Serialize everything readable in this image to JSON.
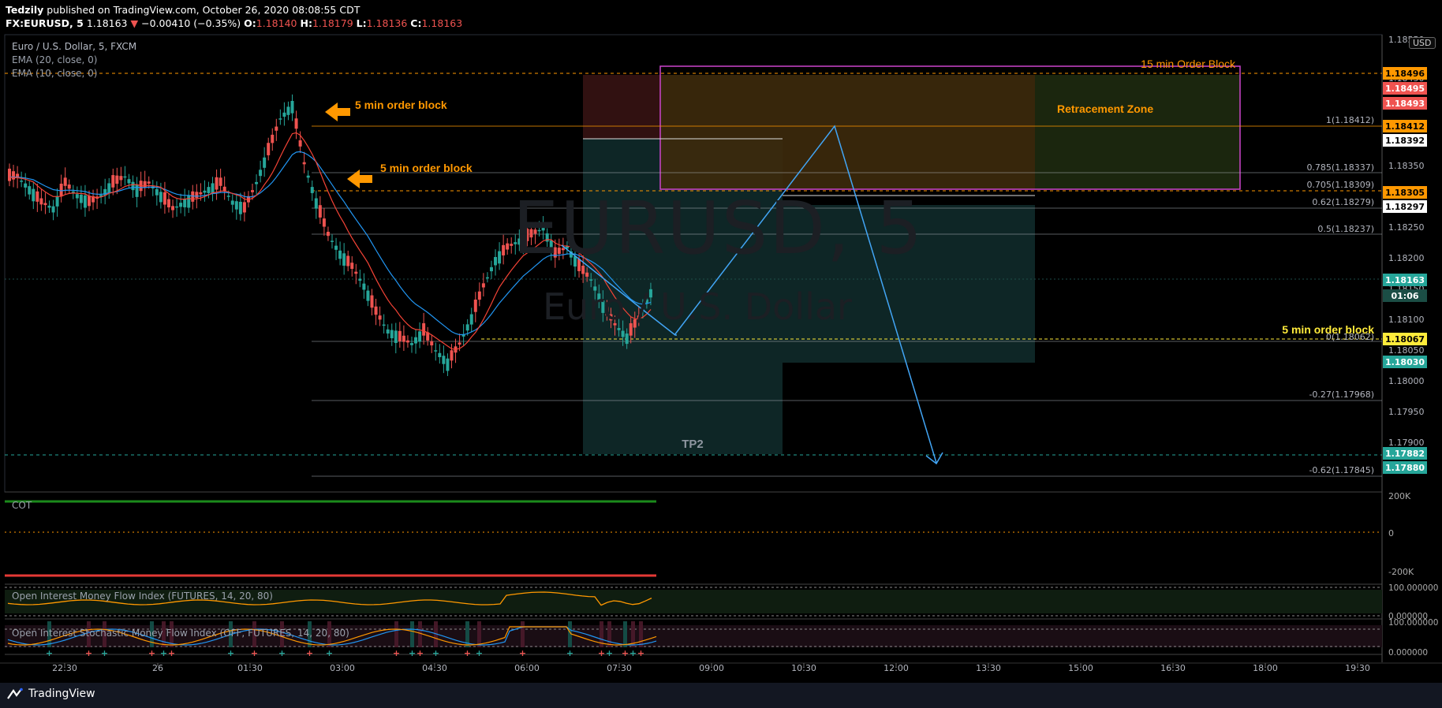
{
  "header": {
    "author": "Tedzily",
    "published": "published on TradingView.com, October 26, 2020 08:08:55 CDT",
    "symbol_line": "FX:EURUSD, 5",
    "last": "1.18163",
    "change": "−0.00410 (−0.35%)",
    "o_label": "O:",
    "o": "1.18140",
    "h_label": "H:",
    "h": "1.18179",
    "l_label": "L:",
    "l": "1.18136",
    "c_label": "C:",
    "c": "1.18163"
  },
  "legend": {
    "title": "Euro / U.S. Dollar, 5, FXCM",
    "ema20": "EMA (20, close, 0)",
    "ema10": "EMA (10, close, 0)",
    "cot": "COT",
    "oimfi": "Open Interest Money Flow Index (FUTURES, 14, 20, 80)",
    "oismfi": "Open Interest Stochastic Money Flow Index (OFF, FUTURES, 14, 20, 80)"
  },
  "watermark": {
    "symbol": "EURUSD, 5",
    "name": "Euro / U.S. Dollar"
  },
  "currency_badge": "USD",
  "footer": {
    "brand": "TradingView"
  },
  "colors": {
    "up": "#26a69a",
    "down": "#ef5350",
    "ema20": "#2196f3",
    "ema10": "#f44336",
    "annotation": "#ff9800",
    "fib": "#b2b5be",
    "drawing": "#42a5f5",
    "box": "#cc44cc"
  },
  "chart_data": {
    "type": "candlestick",
    "title": "Euro / U.S. Dollar, 5, FXCM",
    "x_ticks": [
      "22:30",
      "26",
      "01:30",
      "03:00",
      "04:30",
      "06:00",
      "07:30",
      "09:00",
      "10:30",
      "12:00",
      "13:30",
      "15:00",
      "16:30",
      "18:00",
      "19:30"
    ],
    "y_ticks": [
      "1.18550",
      "1.18450",
      "1.18350",
      "1.18250",
      "1.18200",
      "1.18150",
      "1.18100",
      "1.18050",
      "1.18000",
      "1.17950",
      "1.17900"
    ],
    "ylim": [
      1.1785,
      1.1856
    ],
    "candles_close_path": [
      1.1834,
      1.1832,
      1.183,
      1.1829,
      1.1833,
      1.1831,
      1.183,
      1.1831,
      1.1833,
      1.1834,
      1.1832,
      1.1833,
      1.1831,
      1.1829,
      1.183,
      1.1831,
      1.1832,
      1.1833,
      1.183,
      1.1829,
      1.1833,
      1.1838,
      1.1843,
      1.1845,
      1.1836,
      1.183,
      1.1825,
      1.1822,
      1.182,
      1.1817,
      1.1813,
      1.181,
      1.1809,
      1.1808,
      1.181,
      1.1807,
      1.1805,
      1.1808,
      1.1812,
      1.1817,
      1.1821,
      1.1823,
      1.1824,
      1.1825,
      1.1826,
      1.1822,
      1.1823,
      1.182,
      1.1818,
      1.1814,
      1.1811,
      1.1809,
      1.1812,
      1.1816
    ],
    "price_labels": [
      {
        "value": "1.18496",
        "color": "#ff9800",
        "text_color": "#000"
      },
      {
        "value": "1.18495",
        "color": "#ef5350",
        "text_color": "#fff"
      },
      {
        "value": "1.18493",
        "color": "#ef5350",
        "text_color": "#fff"
      },
      {
        "value": "1.18412",
        "color": "#ff9800",
        "text_color": "#000"
      },
      {
        "value": "1.18392",
        "color": "#ffffff",
        "text_color": "#000"
      },
      {
        "value": "1.18305",
        "color": "#ff9800",
        "text_color": "#000"
      },
      {
        "value": "1.18297",
        "color": "#ffffff",
        "text_color": "#000"
      },
      {
        "value": "1.18163",
        "color": "#26a69a",
        "text_color": "#fff"
      },
      {
        "value": "01:06",
        "color": "#1b4d45",
        "text_color": "#fff"
      },
      {
        "value": "1.18067",
        "color": "#ffeb3b",
        "text_color": "#000"
      },
      {
        "value": "1.18030",
        "color": "#26a69a",
        "text_color": "#fff"
      },
      {
        "value": "1.17882",
        "color": "#26a69a",
        "text_color": "#fff"
      },
      {
        "value": "1.17880",
        "color": "#26a69a",
        "text_color": "#fff"
      }
    ],
    "fib_levels": [
      {
        "label": "1(1.18412)",
        "value": 1.18412
      },
      {
        "label": "0.785(1.18337)",
        "value": 1.18337
      },
      {
        "label": "0.705(1.18309)",
        "value": 1.18309
      },
      {
        "label": "0.62(1.18279)",
        "value": 1.18279
      },
      {
        "label": "0.5(1.18237)",
        "value": 1.18237
      },
      {
        "label": "0(1.18062)",
        "value": 1.18062
      },
      {
        "label": "-0.27(1.17968)",
        "value": 1.17968
      },
      {
        "label": "-0.62(1.17845)",
        "value": 1.17845
      }
    ],
    "annotations": [
      "15 min Order Block",
      "5 min order block",
      "5 min order block",
      "Retracement  Zone",
      "5 min order block",
      "TP2"
    ],
    "cot_ticks": [
      "200K",
      "0",
      "-200K"
    ],
    "oscillator_ticks": [
      "100.000000",
      "0.000000",
      "100.000000",
      "0.000000"
    ]
  }
}
